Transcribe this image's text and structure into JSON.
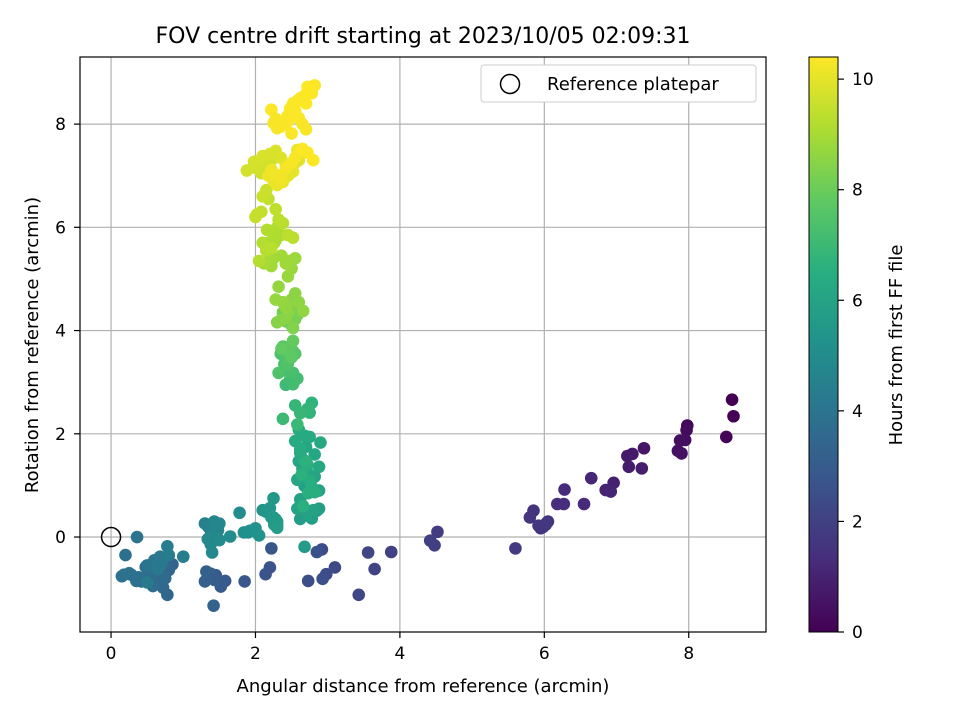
{
  "chart_data": {
    "type": "scatter",
    "title": "FOV centre drift starting at 2023/10/05 02:09:31",
    "xlabel": "Angular distance from reference (arcmin)",
    "ylabel": "Rotation from reference (arcmin)",
    "xlim": [
      -0.43,
      9.07
    ],
    "ylim": [
      -1.84,
      9.3
    ],
    "xticks": [
      0,
      2,
      4,
      6,
      8
    ],
    "yticks": [
      0,
      2,
      4,
      6,
      8
    ],
    "grid": true,
    "legend": {
      "placement": "top-right",
      "label": "Reference platepar"
    },
    "reference_point": {
      "x": 0,
      "y": 0
    },
    "colorbar": {
      "label": "Hours from first FF file",
      "range": [
        0,
        10.4
      ],
      "ticks": [
        0,
        2,
        4,
        6,
        8,
        10
      ],
      "colormap": "viridis"
    },
    "series": [
      {
        "x": [
          8.6,
          8.62,
          8.52,
          7.98,
          7.97,
          7.95,
          7.88,
          7.85,
          7.9,
          7.38,
          7.22,
          7.15,
          7.17,
          7.35,
          6.96,
          6.85,
          6.92,
          6.65,
          6.55,
          6.28,
          6.27,
          6.18,
          6.05,
          6.02,
          5.85,
          5.8,
          5.92,
          5.95,
          5.98,
          6.03,
          5.6,
          4.52,
          4.48,
          4.42,
          3.88,
          3.65,
          3.56,
          3.43,
          3.1,
          2.98,
          2.92,
          2.73,
          2.93,
          2.85
        ],
        "y": [
          2.66,
          2.34,
          1.94,
          2.16,
          2.07,
          1.88,
          1.87,
          1.67,
          1.62,
          1.72,
          1.61,
          1.57,
          1.36,
          1.33,
          1.05,
          0.91,
          0.88,
          1.14,
          0.64,
          0.92,
          0.64,
          0.64,
          0.3,
          0.24,
          0.51,
          0.38,
          0.22,
          0.17,
          0.19,
          0.27,
          -0.22,
          0.1,
          -0.16,
          -0.07,
          -0.29,
          -0.62,
          -0.3,
          -1.12,
          -0.59,
          -0.72,
          -0.24,
          -0.85,
          -0.81,
          -0.29
        ],
        "t": [
          0.0,
          0.05,
          0.1,
          0.2,
          0.3,
          0.35,
          0.4,
          0.45,
          0.5,
          0.6,
          0.7,
          0.75,
          0.8,
          0.85,
          0.95,
          1.0,
          1.05,
          1.1,
          1.2,
          1.25,
          1.3,
          1.35,
          1.4,
          1.45,
          1.5,
          1.55,
          1.6,
          1.62,
          1.65,
          1.68,
          1.75,
          1.85,
          1.9,
          1.95,
          2.05,
          2.1,
          2.15,
          2.2,
          2.3,
          2.35,
          2.4,
          2.45,
          2.5,
          2.55
        ]
      },
      {
        "x": [
          2.2,
          2.14,
          2.22,
          1.85,
          1.58,
          1.52,
          1.45,
          1.43,
          1.38,
          1.3,
          1.32,
          1.42,
          0.85,
          0.8,
          0.78,
          0.72,
          0.68,
          0.75,
          0.62,
          0.58,
          0.55,
          0.52,
          0.48,
          0.42,
          0.38,
          0.35,
          0.28,
          0.25,
          0.18,
          0.15,
          0.36,
          0.5,
          0.6,
          0.68,
          0.7,
          0.65,
          0.5,
          0.78,
          0.8,
          1.0,
          0.2
        ],
        "y": [
          -0.59,
          -0.72,
          -0.22,
          -0.86,
          -0.85,
          -0.96,
          -0.74,
          -0.83,
          -0.71,
          -0.86,
          -0.67,
          -1.33,
          -0.53,
          -0.64,
          -1.12,
          -0.98,
          -0.87,
          -0.8,
          -0.72,
          -0.95,
          -0.81,
          -0.68,
          -0.58,
          -0.86,
          -0.78,
          -0.85,
          -0.73,
          -0.7,
          -0.73,
          -0.76,
          0.0,
          -0.55,
          -0.45,
          -0.38,
          -0.52,
          -0.62,
          -0.88,
          -0.18,
          -0.35,
          -0.38,
          -0.35
        ],
        "t": [
          2.6,
          2.7,
          2.75,
          2.8,
          2.9,
          2.95,
          3.0,
          3.05,
          3.1,
          3.15,
          3.2,
          3.25,
          3.35,
          3.4,
          3.45,
          3.5,
          3.55,
          3.6,
          3.62,
          3.65,
          3.68,
          3.7,
          3.72,
          3.75,
          3.78,
          3.8,
          3.85,
          3.88,
          3.9,
          3.92,
          3.95,
          4.0,
          4.05,
          4.1,
          4.15,
          4.2,
          4.25,
          4.3,
          4.35,
          4.4,
          3.82
        ]
      },
      {
        "x": [
          1.3,
          1.35,
          1.38,
          1.43,
          1.48,
          1.5,
          1.45,
          1.42,
          1.38,
          1.34,
          1.4,
          1.5,
          1.65,
          1.78,
          1.84,
          1.9,
          1.92,
          2.0,
          2.05,
          2.1,
          2.15,
          2.2,
          2.25,
          2.28,
          2.3,
          2.22,
          2.25,
          2.26,
          2.3,
          2.3
        ],
        "y": [
          0.26,
          0.19,
          0.03,
          0.3,
          0.13,
          0.26,
          0.22,
          0.0,
          -0.14,
          -0.04,
          -0.3,
          -0.06,
          0.01,
          0.47,
          0.09,
          0.09,
          0.12,
          0.17,
          0.03,
          0.52,
          0.49,
          0.56,
          0.75,
          0.34,
          0.23,
          0.38,
          0.38,
          0.24,
          0.3,
          0.18
        ],
        "t": [
          4.5,
          4.55,
          4.6,
          4.65,
          4.7,
          4.72,
          4.75,
          4.78,
          4.8,
          4.82,
          4.85,
          4.9,
          5.0,
          5.05,
          5.1,
          5.15,
          5.2,
          5.25,
          5.3,
          5.35,
          5.4,
          5.45,
          5.5,
          5.52,
          5.55,
          5.58,
          5.6,
          5.62,
          5.65,
          5.68
        ]
      },
      {
        "x": [
          2.62,
          2.72,
          2.78,
          2.85,
          2.88,
          2.82,
          2.75,
          2.68,
          2.62,
          2.58,
          2.72,
          2.8,
          2.88,
          2.82,
          2.72,
          2.65,
          2.6,
          2.58,
          2.62,
          2.7,
          2.82,
          2.88,
          2.9,
          2.75,
          2.68,
          2.6,
          2.55,
          2.62,
          2.66,
          2.72,
          2.75,
          2.78,
          2.82,
          2.73,
          2.66,
          2.64,
          2.7,
          2.68
        ],
        "y": [
          0.35,
          0.42,
          0.36,
          0.51,
          0.55,
          0.88,
          0.97,
          0.99,
          0.73,
          0.55,
          0.45,
          0.52,
          0.9,
          1.17,
          1.25,
          1.32,
          1.47,
          1.11,
          1.63,
          1.75,
          1.6,
          1.36,
          1.83,
          1.94,
          1.96,
          2.08,
          1.86,
          1.7,
          1.5,
          1.4,
          1.09,
          0.97,
          0.87,
          0.85,
          0.6,
          1.21,
          1.45,
          -0.19
        ],
        "t": [
          5.7,
          5.72,
          5.75,
          5.78,
          5.8,
          5.82,
          5.85,
          5.88,
          5.9,
          5.92,
          5.95,
          5.98,
          6.0,
          6.02,
          6.05,
          6.08,
          6.1,
          6.12,
          6.15,
          6.18,
          6.2,
          6.22,
          6.25,
          6.28,
          6.3,
          6.32,
          6.35,
          6.38,
          6.4,
          6.42,
          6.45,
          6.48,
          6.5,
          6.52,
          6.55,
          6.58,
          6.6,
          5.65
        ]
      },
      {
        "x": [
          2.78,
          2.75,
          2.72,
          2.55,
          2.62,
          2.58,
          2.38,
          2.42,
          2.48,
          2.52,
          2.58,
          2.52,
          2.45,
          2.4,
          2.35,
          2.32,
          2.45,
          2.55,
          2.52,
          2.38,
          2.45,
          2.5,
          2.48,
          2.36,
          2.52,
          2.5,
          2.55,
          2.42,
          2.38,
          2.62,
          2.58,
          2.55,
          2.5,
          2.48,
          2.52
        ],
        "y": [
          2.6,
          2.41,
          2.48,
          2.55,
          2.4,
          2.18,
          2.29,
          2.95,
          3.05,
          2.96,
          3.07,
          3.18,
          3.2,
          3.35,
          3.55,
          3.18,
          3.37,
          3.55,
          3.6,
          3.69,
          3.68,
          3.48,
          3.55,
          3.65,
          3.8,
          4.1,
          4.35,
          4.18,
          4.35,
          4.38,
          4.3,
          4.22,
          4.5,
          4.4,
          4.05
        ],
        "t": [
          6.7,
          6.75,
          6.8,
          6.85,
          6.9,
          6.95,
          7.0,
          7.05,
          7.1,
          7.15,
          7.2,
          7.25,
          7.3,
          7.35,
          7.4,
          7.45,
          7.5,
          7.55,
          7.6,
          7.65,
          7.7,
          7.75,
          7.8,
          7.85,
          7.9,
          7.95,
          8.0,
          8.05,
          8.1,
          8.15,
          8.2,
          8.25,
          8.3,
          8.35,
          8.4
        ]
      },
      {
        "x": [
          2.3,
          2.35,
          2.42,
          2.45,
          2.5,
          2.55,
          2.6,
          2.66,
          2.42,
          2.38,
          2.32,
          2.28,
          2.45,
          2.5,
          2.55,
          2.48,
          2.42,
          2.36,
          2.25,
          2.22,
          2.2,
          2.12,
          2.2,
          2.26,
          2.18,
          2.28,
          2.35,
          2.3,
          2.24,
          2.16,
          2.1,
          2.05,
          2.15,
          2.22,
          2.38,
          2.45,
          2.52,
          2.32,
          2.28,
          2.18,
          2.08,
          2.02,
          2.0
        ],
        "y": [
          4.16,
          4.2,
          4.25,
          4.35,
          4.6,
          4.72,
          4.55,
          4.38,
          4.45,
          4.55,
          4.85,
          4.6,
          5.05,
          5.2,
          5.4,
          5.35,
          5.3,
          5.45,
          5.4,
          5.25,
          5.38,
          5.3,
          5.6,
          5.7,
          5.7,
          5.75,
          5.85,
          6.0,
          5.9,
          5.95,
          5.7,
          5.35,
          5.55,
          5.6,
          6.08,
          5.85,
          5.8,
          6.15,
          6.35,
          6.55,
          6.3,
          6.25,
          6.2
        ],
        "t": [
          8.45,
          8.48,
          8.5,
          8.52,
          8.55,
          8.58,
          8.6,
          8.62,
          8.65,
          8.68,
          8.7,
          8.72,
          8.75,
          8.78,
          8.8,
          8.82,
          8.85,
          8.88,
          8.9,
          8.92,
          8.95,
          8.98,
          9.0,
          9.02,
          9.05,
          9.08,
          9.1,
          9.12,
          9.15,
          9.18,
          9.2,
          9.22,
          9.25,
          9.28,
          9.3,
          9.32,
          9.35,
          9.38,
          9.4,
          9.42,
          9.45,
          9.48,
          9.5
        ]
      },
      {
        "x": [
          2.1,
          2.15,
          2.08,
          2.18,
          2.22,
          2.12,
          2.05,
          2.0,
          1.98,
          2.1,
          2.2,
          2.28,
          2.35,
          2.42,
          2.5,
          2.55,
          2.6,
          2.62,
          2.58,
          2.52,
          2.45,
          2.38,
          2.3,
          2.25,
          2.18,
          2.22,
          2.28,
          2.35,
          2.42,
          2.5,
          2.55,
          2.6,
          2.65,
          2.72,
          2.8,
          2.7,
          2.65,
          2.6,
          2.55,
          2.5,
          2.45,
          2.38,
          2.3,
          2.25,
          2.22,
          2.28,
          2.7,
          2.78,
          2.82,
          2.72,
          2.68,
          2.62,
          2.58,
          2.52,
          2.48,
          2.44,
          2.4,
          2.35,
          1.88
        ],
        "y": [
          6.6,
          6.72,
          7.05,
          7.2,
          7.3,
          7.34,
          7.22,
          7.15,
          7.27,
          7.38,
          7.42,
          7.48,
          7.35,
          7.23,
          7.18,
          7.25,
          7.3,
          7.4,
          7.5,
          7.08,
          7.0,
          6.88,
          6.82,
          6.9,
          7.0,
          7.12,
          7.02,
          6.95,
          7.15,
          7.25,
          7.35,
          7.48,
          7.52,
          7.45,
          7.3,
          7.9,
          8.0,
          8.12,
          8.25,
          7.82,
          8.05,
          7.98,
          7.92,
          8.02,
          8.28,
          8.1,
          8.4,
          8.6,
          8.75,
          8.72,
          8.55,
          8.5,
          8.45,
          8.4,
          8.3,
          8.15,
          8.05,
          7.95,
          7.1
        ],
        "t": [
          9.55,
          9.58,
          9.6,
          9.62,
          9.65,
          9.68,
          9.7,
          9.72,
          9.75,
          9.78,
          9.8,
          9.82,
          9.85,
          9.88,
          9.9,
          9.92,
          9.95,
          9.98,
          10.0,
          10.02,
          10.05,
          10.08,
          10.1,
          10.12,
          10.15,
          10.18,
          10.2,
          10.22,
          10.25,
          10.28,
          10.3,
          10.32,
          10.35,
          10.38,
          10.38,
          10.3,
          10.32,
          10.34,
          10.36,
          10.33,
          10.35,
          10.31,
          10.29,
          10.27,
          10.36,
          10.3,
          10.39,
          10.39,
          10.4,
          10.4,
          10.39,
          10.38,
          10.37,
          10.36,
          10.35,
          10.34,
          10.33,
          10.32,
          9.7
        ]
      }
    ]
  }
}
